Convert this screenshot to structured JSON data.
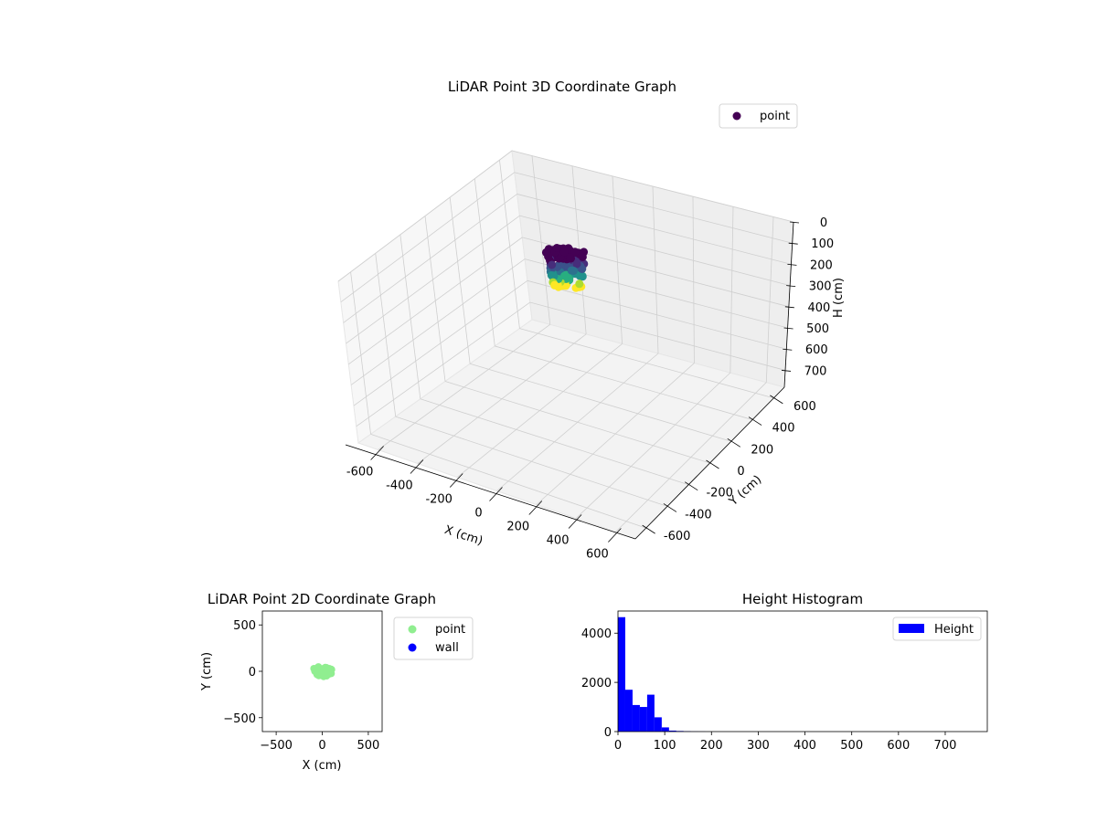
{
  "chart_data": [
    {
      "type": "scatter3d",
      "title": "LiDAR Point 3D Coordinate Graph",
      "xlabel": "X (cm)",
      "ylabel": "Y (cm)",
      "zlabel": "H (cm)",
      "xticks": [
        -600,
        -400,
        -200,
        0,
        200,
        400,
        600
      ],
      "yticks": [
        -600,
        -400,
        -200,
        0,
        200,
        400,
        600
      ],
      "zticks": [
        0,
        100,
        200,
        300,
        400,
        500,
        600,
        700
      ],
      "xlim": [
        -700,
        700
      ],
      "ylim": [
        -700,
        700
      ],
      "zlim": [
        780,
        0
      ],
      "z_inverted": true,
      "colormap": "viridis",
      "legend": {
        "placement": "upper-right",
        "entries": [
          {
            "label": "point",
            "color": "#440154"
          }
        ]
      },
      "series": [
        {
          "label": "point",
          "description_of_cluster": {
            "x_range": [
              -100,
              100
            ],
            "y_range": [
              -90,
              80
            ],
            "h_range": [
              0,
              180
            ]
          }
        }
      ],
      "grid": true
    },
    {
      "type": "scatter",
      "title": "LiDAR Point 2D Coordinate Graph",
      "xlabel": "X (cm)",
      "ylabel": "Y (cm)",
      "xticks": [
        -500,
        0,
        500
      ],
      "yticks": [
        -500,
        0,
        500
      ],
      "xlim": [
        -650,
        650
      ],
      "ylim": [
        -650,
        650
      ],
      "legend": {
        "placement": "outside-right",
        "entries": [
          {
            "label": "point",
            "color": "#90ee90"
          },
          {
            "label": "wall",
            "color": "#0000ff"
          }
        ]
      },
      "cluster": {
        "x_range": [
          -130,
          130
        ],
        "y_range": [
          -90,
          80
        ]
      },
      "grid": false
    },
    {
      "type": "histogram",
      "title": "Height Histogram",
      "xticks": [
        0,
        100,
        200,
        300,
        400,
        500,
        600,
        700
      ],
      "yticks": [
        0,
        2000,
        4000
      ],
      "xlim": [
        0,
        790
      ],
      "ylim": [
        0,
        4900
      ],
      "color": "#0000ff",
      "legend": {
        "placement": "upper-right",
        "entries": [
          {
            "label": "Height",
            "color": "#0000ff"
          }
        ]
      },
      "bin_width": 15.6,
      "bins": [
        {
          "x0": 0,
          "count": 4650
        },
        {
          "x0": 15.6,
          "count": 1700
        },
        {
          "x0": 31.2,
          "count": 1080
        },
        {
          "x0": 46.8,
          "count": 1000
        },
        {
          "x0": 62.4,
          "count": 1500
        },
        {
          "x0": 78.0,
          "count": 580
        },
        {
          "x0": 93.6,
          "count": 170
        },
        {
          "x0": 109.2,
          "count": 40
        },
        {
          "x0": 124.8,
          "count": 25
        },
        {
          "x0": 140.4,
          "count": 15
        },
        {
          "x0": 156.0,
          "count": 5
        },
        {
          "x0": 171.6,
          "count": 3
        }
      ]
    }
  ]
}
